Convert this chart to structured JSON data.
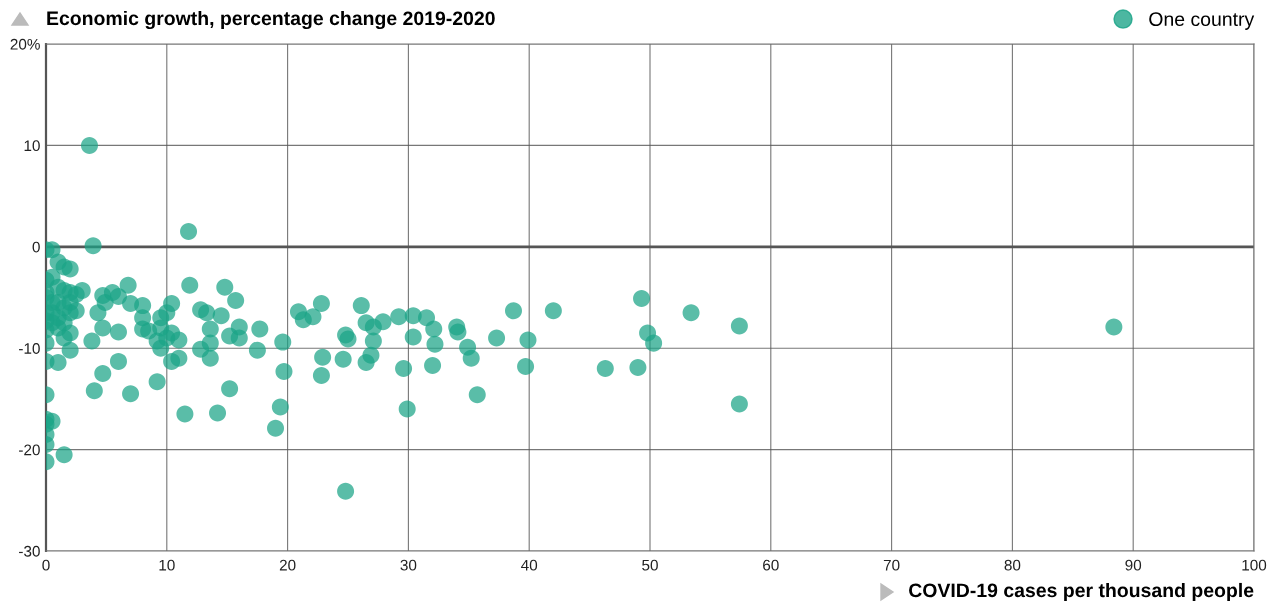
{
  "chart_data": {
    "type": "scatter",
    "ylabel": "Economic growth, percentage change 2019-2020",
    "xlabel": "COVID-19 cases per thousand people",
    "xlim": [
      0,
      100
    ],
    "xticks": [
      0,
      10,
      20,
      30,
      40,
      50,
      60,
      70,
      80,
      90,
      100
    ],
    "ylim": [
      -30,
      20
    ],
    "yticks": [
      -30,
      -20,
      -10,
      0,
      10,
      {
        "value": 20,
        "label": "20%"
      }
    ],
    "grid": true,
    "legend": "top right",
    "marker": "circle",
    "ref_lines": [
      {
        "axis": "y",
        "value": 0,
        "label": null
      }
    ],
    "series": [
      {
        "name": "One country",
        "color": "#1aa386",
        "x": [
          0,
          0,
          0,
          0,
          0,
          0,
          0,
          0,
          0,
          0,
          0,
          0,
          0,
          0,
          0,
          0.5,
          0.5,
          0.5,
          0.5,
          0.5,
          0.5,
          1,
          1,
          1,
          1,
          1,
          1,
          1.5,
          1.5,
          1.5,
          1.5,
          1.5,
          1.5,
          2,
          2,
          2,
          2,
          2,
          2,
          2.5,
          2.5,
          3,
          3.6,
          3.8,
          3.9,
          4,
          4.3,
          4.7,
          4.7,
          4.7,
          4.9,
          5.5,
          6,
          6,
          6,
          6.8,
          7,
          7,
          8,
          8,
          8,
          8.5,
          9.2,
          9.2,
          9.5,
          9.5,
          9.5,
          10,
          10,
          10.4,
          10.4,
          10.4,
          11,
          11,
          11.5,
          11.8,
          11.9,
          12.8,
          12.8,
          13.3,
          13.6,
          13.6,
          13.6,
          14.2,
          14.5,
          14.8,
          15.2,
          15.2,
          15.7,
          16,
          16,
          17.5,
          17.7,
          19.0,
          19.4,
          19.6,
          19.7,
          20.9,
          21.3,
          22.1,
          22.8,
          22.9,
          22.8,
          24.6,
          24.8,
          25.0,
          24.8,
          26.1,
          26.5,
          27.1,
          27.9,
          27.1,
          26.9,
          26.5,
          29.2,
          30.4,
          30.4,
          31.5,
          32.1,
          32.2,
          29.6,
          29.9,
          32.0,
          34.0,
          34.1,
          34.9,
          35.2,
          35.7,
          37.3,
          38.7,
          39.9,
          39.7,
          42.0,
          46.3,
          49.0,
          49.3,
          49.8,
          50.3,
          53.4,
          57.4,
          57.4,
          88.4
        ],
        "values": [
          -0.3,
          -3.3,
          -4.5,
          -5,
          -6.5,
          -7.3,
          -8.2,
          -9.5,
          -11.3,
          -14.6,
          -17,
          -17.5,
          -18.5,
          -19.5,
          -21.2,
          -0.3,
          -3,
          -5.5,
          -6.5,
          -7.5,
          -17.2,
          -1.5,
          -4,
          -5.5,
          -7,
          -8,
          -11.4,
          -2,
          -4.3,
          -6,
          -7.5,
          -9,
          -20.5,
          -2.2,
          -4.5,
          -5.5,
          -6.5,
          -8.5,
          -10.2,
          -6.3,
          -4.7,
          -4.3,
          10,
          -9.3,
          0.1,
          -14.2,
          -6.5,
          -4.8,
          -8,
          -12.5,
          -5.5,
          -4.5,
          -4.9,
          -8.4,
          -11.3,
          -3.8,
          -5.6,
          -14.5,
          -5.8,
          -7,
          -8.1,
          -8.3,
          -13.3,
          -9.3,
          -7,
          -8,
          -10,
          -9,
          -6.5,
          -5.6,
          -8.5,
          -11.3,
          -9.2,
          -11,
          -16.5,
          1.5,
          -3.8,
          -6.2,
          -10.1,
          -6.5,
          -8.1,
          -9.5,
          -11,
          -16.4,
          -6.8,
          -4,
          -8.8,
          -14,
          -5.3,
          -7.9,
          -9,
          -10.2,
          -8.1,
          -17.9,
          -15.8,
          -9.4,
          -12.3,
          -6.4,
          -7.2,
          -6.9,
          -5.6,
          -10.9,
          -12.7,
          -11.1,
          -8.7,
          -9.1,
          -24.1,
          -5.8,
          -7.5,
          -7.9,
          -7.4,
          -9.3,
          -10.7,
          -11.4,
          -6.9,
          -6.8,
          -8.9,
          -7.0,
          -8.1,
          -9.6,
          -12.0,
          -16.0,
          -11.7,
          -7.9,
          -8.4,
          -9.9,
          -11.0,
          -14.6,
          -9.0,
          -6.3,
          -9.2,
          -11.8,
          -6.3,
          -12.0,
          -11.9,
          -5.1,
          -8.5,
          -9.5,
          -6.5,
          -7.8,
          -15.5,
          -7.9
        ]
      }
    ]
  }
}
